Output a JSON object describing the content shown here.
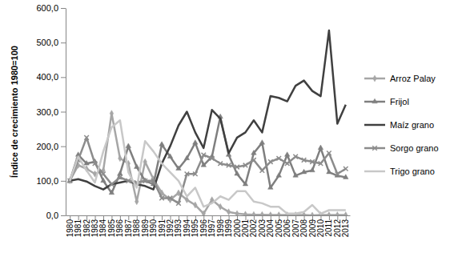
{
  "chart_data": {
    "type": "line",
    "y_label": "Índice de crecimiento 1980=100",
    "categories": [
      "1980",
      "1981",
      "1982",
      "1983",
      "1984",
      "1985",
      "1986",
      "1987",
      "1988",
      "1989",
      "1990",
      "1991",
      "1992",
      "1993",
      "1994",
      "1995",
      "1996",
      "1997",
      "1998",
      "1999",
      "2000",
      "2001",
      "2002",
      "2003",
      "2004",
      "2005",
      "2006",
      "2007",
      "2008",
      "2009",
      "2010",
      "2011",
      "2012",
      "2013"
    ],
    "series": [
      {
        "name": "Arroz Palay",
        "color": "#a6a6a6",
        "marker": "diamond",
        "values": [
          100,
          145,
          135,
          120,
          130,
          295,
          165,
          150,
          40,
          155,
          105,
          65,
          45,
          65,
          45,
          30,
          5,
          45,
          25,
          10,
          5,
          3,
          2,
          2,
          1,
          1,
          1,
          1,
          1,
          0,
          1,
          1,
          1,
          1
        ]
      },
      {
        "name": "Frijol",
        "color": "#7f7f7f",
        "marker": "triangle",
        "values": [
          100,
          175,
          150,
          155,
          100,
          65,
          120,
          200,
          140,
          100,
          90,
          205,
          170,
          135,
          165,
          210,
          145,
          170,
          285,
          175,
          120,
          90,
          180,
          210,
          80,
          115,
          175,
          115,
          125,
          130,
          195,
          125,
          115,
          110
        ]
      },
      {
        "name": "Maíz grano",
        "color": "#404040",
        "marker": "none",
        "values": [
          100,
          105,
          98,
          85,
          75,
          90,
          95,
          100,
          90,
          85,
          75,
          150,
          200,
          260,
          300,
          240,
          195,
          305,
          280,
          180,
          225,
          240,
          275,
          240,
          345,
          340,
          330,
          375,
          390,
          360,
          345,
          535,
          265,
          320
        ]
      },
      {
        "name": "Sorgo grano",
        "color": "#8c8c8c",
        "marker": "x",
        "values": [
          100,
          160,
          225,
          150,
          120,
          90,
          110,
          100,
          95,
          100,
          100,
          50,
          50,
          35,
          120,
          120,
          175,
          165,
          150,
          145,
          140,
          145,
          160,
          130,
          155,
          165,
          150,
          170,
          160,
          155,
          150,
          180,
          120,
          135
        ]
      },
      {
        "name": "Trigo grano",
        "color": "#c8c8c8",
        "marker": "none",
        "values": [
          100,
          170,
          130,
          95,
          185,
          255,
          275,
          125,
          80,
          215,
          185,
          150,
          125,
          100,
          55,
          80,
          25,
          35,
          55,
          45,
          70,
          70,
          40,
          35,
          25,
          25,
          5,
          5,
          10,
          30,
          5,
          15,
          15,
          15
        ]
      }
    ],
    "ylim": [
      0,
      600
    ],
    "yticks": [
      {
        "value": 0,
        "label": "0,0"
      },
      {
        "value": 100,
        "label": "100,0"
      },
      {
        "value": 200,
        "label": "200,0"
      },
      {
        "value": 300,
        "label": "300,0"
      },
      {
        "value": 400,
        "label": "400,0"
      },
      {
        "value": 500,
        "label": "500,0"
      },
      {
        "value": 600,
        "label": "600,0"
      }
    ],
    "grid": false,
    "legend": "right"
  }
}
